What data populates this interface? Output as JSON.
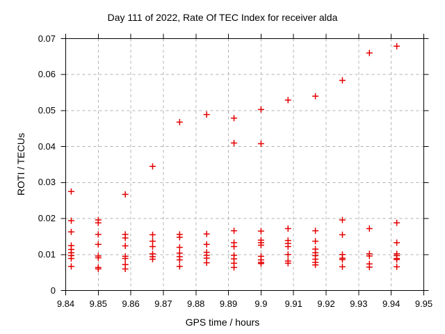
{
  "chart_data": {
    "type": "scatter",
    "title": "Day 111 of 2022, Rate Of TEC Index for receiver alda",
    "xlabel": "GPS time / hours",
    "ylabel": "ROTI / TECUs",
    "xlim": [
      9.84,
      9.95
    ],
    "ylim": [
      0,
      0.07
    ],
    "xtick_values": [
      9.84,
      9.85,
      9.86,
      9.87,
      9.88,
      9.89,
      9.9,
      9.91,
      9.92,
      9.93,
      9.94,
      9.95
    ],
    "xtick_labels": [
      "9.84",
      "9.85",
      "9.86",
      "9.87",
      "9.88",
      "9.89",
      "9.9",
      "9.91",
      "9.92",
      "9.93",
      "9.94",
      "9.95"
    ],
    "ytick_values": [
      0,
      0.01,
      0.02,
      0.03,
      0.04,
      0.05,
      0.06,
      0.07
    ],
    "ytick_labels": [
      "0",
      "0.01",
      "0.02",
      "0.03",
      "0.04",
      "0.05",
      "0.06",
      "0.07"
    ],
    "grid": "dashed",
    "legend": "none",
    "marker": {
      "shape": "plus",
      "color": "#e40000",
      "size": 9
    },
    "grid_color": "#b0b0b0",
    "axis_color": "#000000",
    "series": [
      {
        "name": "ROTI",
        "points": [
          [
            9.8417,
            0.0275
          ],
          [
            9.8417,
            0.0194
          ],
          [
            9.8417,
            0.0163
          ],
          [
            9.8417,
            0.0125
          ],
          [
            9.8417,
            0.0114
          ],
          [
            9.8417,
            0.0105
          ],
          [
            9.8417,
            0.0097
          ],
          [
            9.8417,
            0.0089
          ],
          [
            9.8417,
            0.0067
          ],
          [
            9.85,
            0.0196
          ],
          [
            9.85,
            0.0188
          ],
          [
            9.85,
            0.0156
          ],
          [
            9.85,
            0.0128
          ],
          [
            9.85,
            0.0096
          ],
          [
            9.85,
            0.0091
          ],
          [
            9.85,
            0.0064
          ],
          [
            9.85,
            0.006
          ],
          [
            9.8583,
            0.0267
          ],
          [
            9.8583,
            0.0156
          ],
          [
            9.8583,
            0.0146
          ],
          [
            9.8583,
            0.0124
          ],
          [
            9.8583,
            0.0095
          ],
          [
            9.8583,
            0.0089
          ],
          [
            9.8583,
            0.0072
          ],
          [
            9.8583,
            0.006
          ],
          [
            9.8667,
            0.0345
          ],
          [
            9.8667,
            0.0155
          ],
          [
            9.8667,
            0.0137
          ],
          [
            9.8667,
            0.0122
          ],
          [
            9.8667,
            0.0102
          ],
          [
            9.8667,
            0.0094
          ],
          [
            9.8667,
            0.0087
          ],
          [
            9.875,
            0.0468
          ],
          [
            9.875,
            0.0156
          ],
          [
            9.875,
            0.0148
          ],
          [
            9.875,
            0.012
          ],
          [
            9.875,
            0.0104
          ],
          [
            9.875,
            0.0094
          ],
          [
            9.875,
            0.0085
          ],
          [
            9.875,
            0.0067
          ],
          [
            9.8833,
            0.0489
          ],
          [
            9.8833,
            0.0157
          ],
          [
            9.8833,
            0.0128
          ],
          [
            9.8833,
            0.0106
          ],
          [
            9.8833,
            0.0098
          ],
          [
            9.8833,
            0.009
          ],
          [
            9.8833,
            0.0077
          ],
          [
            9.8917,
            0.0479
          ],
          [
            9.8917,
            0.041
          ],
          [
            9.8917,
            0.0166
          ],
          [
            9.8917,
            0.0133
          ],
          [
            9.8917,
            0.0122
          ],
          [
            9.8917,
            0.0098
          ],
          [
            9.8917,
            0.0088
          ],
          [
            9.8917,
            0.0076
          ],
          [
            9.8917,
            0.0064
          ],
          [
            9.9,
            0.0503
          ],
          [
            9.9,
            0.0408
          ],
          [
            9.9,
            0.0165
          ],
          [
            9.9,
            0.014
          ],
          [
            9.9,
            0.0133
          ],
          [
            9.9,
            0.0126
          ],
          [
            9.9,
            0.0095
          ],
          [
            9.9,
            0.0085
          ],
          [
            9.9,
            0.0078
          ],
          [
            9.9,
            0.0075
          ],
          [
            9.9083,
            0.0529
          ],
          [
            9.9083,
            0.0172
          ],
          [
            9.9083,
            0.0139
          ],
          [
            9.9083,
            0.0131
          ],
          [
            9.9083,
            0.0122
          ],
          [
            9.9083,
            0.01
          ],
          [
            9.9083,
            0.0082
          ],
          [
            9.9083,
            0.0076
          ],
          [
            9.9167,
            0.054
          ],
          [
            9.9167,
            0.0166
          ],
          [
            9.9167,
            0.0137
          ],
          [
            9.9167,
            0.0115
          ],
          [
            9.9167,
            0.0105
          ],
          [
            9.9167,
            0.0097
          ],
          [
            9.9167,
            0.0087
          ],
          [
            9.9167,
            0.0078
          ],
          [
            9.9167,
            0.0071
          ],
          [
            9.925,
            0.0584
          ],
          [
            9.925,
            0.0196
          ],
          [
            9.925,
            0.0155
          ],
          [
            9.925,
            0.01
          ],
          [
            9.925,
            0.009
          ],
          [
            9.925,
            0.0086
          ],
          [
            9.925,
            0.0066
          ],
          [
            9.9333,
            0.066
          ],
          [
            9.9333,
            0.0172
          ],
          [
            9.9333,
            0.0102
          ],
          [
            9.9333,
            0.0096
          ],
          [
            9.9333,
            0.0074
          ],
          [
            9.9333,
            0.0065
          ],
          [
            9.9417,
            0.0679
          ],
          [
            9.9417,
            0.0188
          ],
          [
            9.9417,
            0.0133
          ],
          [
            9.9417,
            0.0102
          ],
          [
            9.9417,
            0.0097
          ],
          [
            9.9417,
            0.0089
          ],
          [
            9.9417,
            0.0086
          ],
          [
            9.9417,
            0.0066
          ]
        ]
      }
    ]
  }
}
